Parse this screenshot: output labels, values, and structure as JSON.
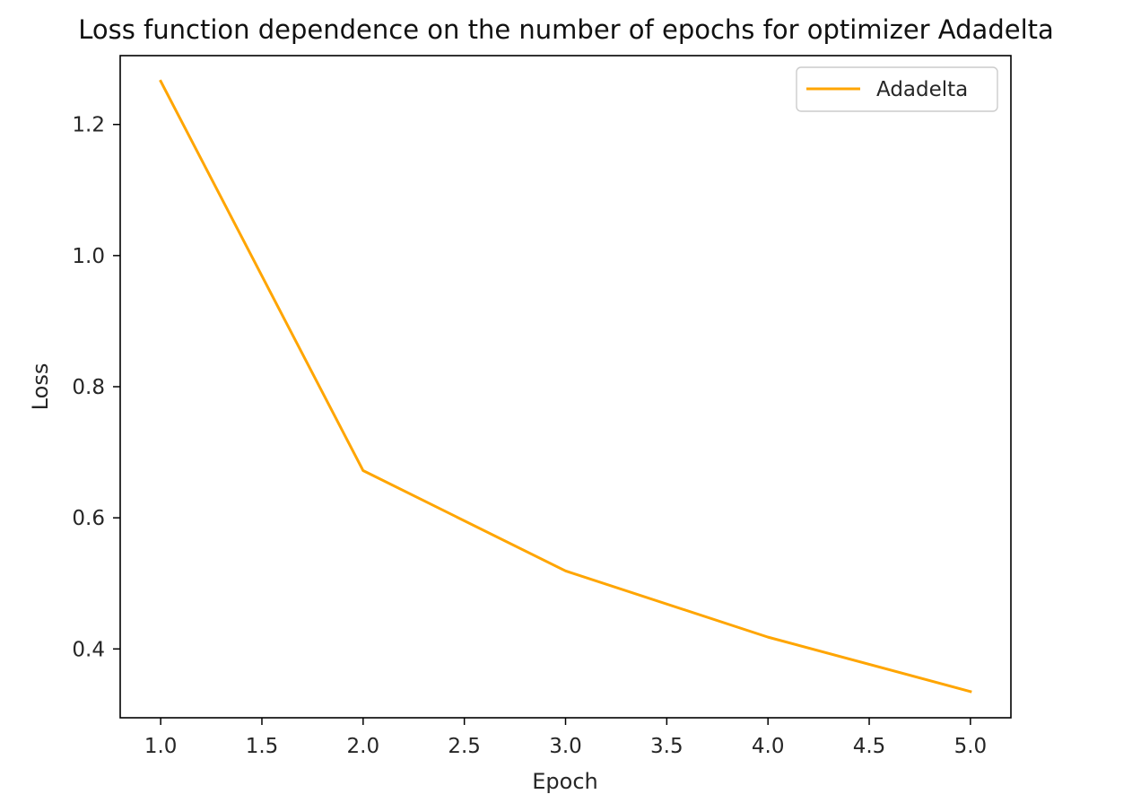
{
  "chart_data": {
    "type": "line",
    "title": "Loss function dependence on the number of epochs for optimizer Adadelta",
    "xlabel": "Epoch",
    "ylabel": "Loss",
    "x": [
      1,
      2,
      3,
      4,
      5
    ],
    "series": [
      {
        "name": "Adadelta",
        "color": "#FFA500",
        "values": [
          1.266,
          0.672,
          0.519,
          0.418,
          0.335
        ]
      }
    ],
    "xlim": [
      0.8,
      5.2
    ],
    "ylim": [
      0.295,
      1.305
    ],
    "xticks": [
      1.0,
      1.5,
      2.0,
      2.5,
      3.0,
      3.5,
      4.0,
      4.5,
      5.0
    ],
    "xtick_labels": [
      "1.0",
      "1.5",
      "2.0",
      "2.5",
      "3.0",
      "3.5",
      "4.0",
      "4.5",
      "5.0"
    ],
    "yticks": [
      0.4,
      0.6,
      0.8,
      1.0,
      1.2
    ],
    "ytick_labels": [
      "0.4",
      "0.6",
      "0.8",
      "1.0",
      "1.2"
    ],
    "grid": false,
    "legend_position": "top-right"
  }
}
